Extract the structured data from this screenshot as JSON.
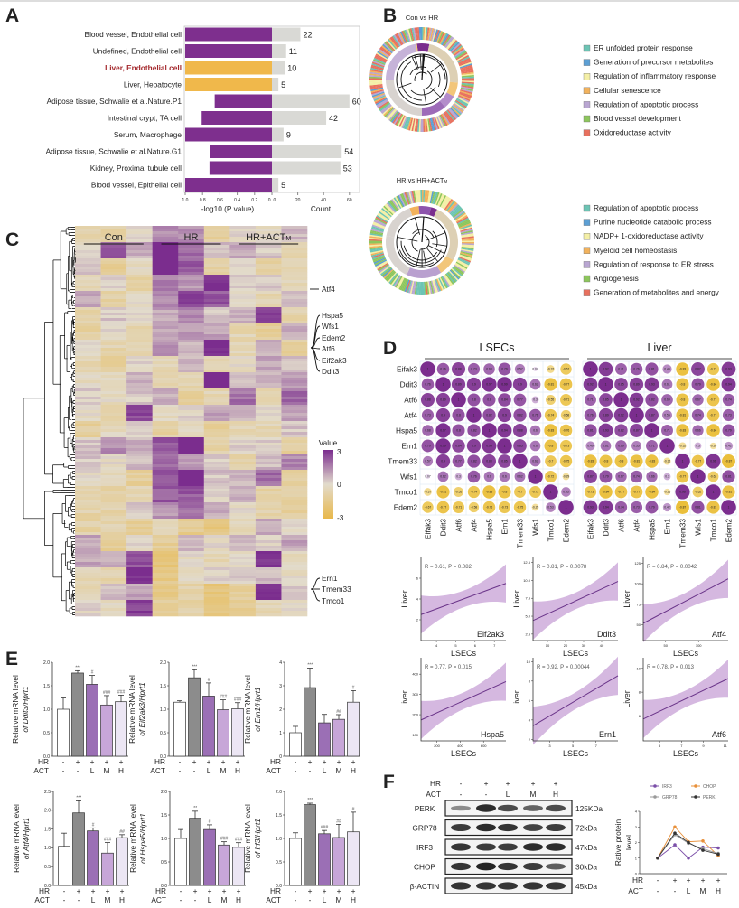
{
  "panel_labels": {
    "A": "A",
    "B": "B",
    "C": "C",
    "D": "D",
    "E": "E",
    "F": "F"
  },
  "panelB": {
    "rings": [
      {
        "title": "Con vs HR",
        "title_sub": "",
        "legend": [
          {
            "label": "ER unfolded protein response",
            "color": "#6cc4b4"
          },
          {
            "label": "Generation of precursor metabolites",
            "color": "#5c9fd4"
          },
          {
            "label": "Regulation of inflammatory response",
            "color": "#f4efa6"
          },
          {
            "label": "Cellular senescence",
            "color": "#f2b25c"
          },
          {
            "label": "Regulation of apoptotic process",
            "color": "#b9a6d2"
          },
          {
            "label": "Blood vessel development",
            "color": "#8dc65c"
          },
          {
            "label": "Oxidoreductase activity",
            "color": "#e8705e"
          }
        ]
      },
      {
        "title": "HR vs HR+ACT",
        "title_sub": "M",
        "legend": [
          {
            "label": "Regulation of apoptotic process",
            "color": "#6cc4b4"
          },
          {
            "label": "Purine nucleotide catabolic process",
            "color": "#5c9fd4"
          },
          {
            "label": "NADP+ 1-oxidoreductase activity",
            "color": "#f4efa6"
          },
          {
            "label": "Myeloid cell homeostasis",
            "color": "#f2b25c"
          },
          {
            "label": "Regulation of response to ER stress",
            "color": "#b9a6d2"
          },
          {
            "label": "Angiogenesis",
            "color": "#8dc65c"
          },
          {
            "label": "Generation of  metabolites and energy",
            "color": "#e8705e"
          }
        ]
      }
    ]
  },
  "panelF_blot": {
    "hr_label": "HR",
    "act_label": "ACT",
    "hr_row": [
      "-",
      "+",
      "+",
      "+",
      "+"
    ],
    "act_row": [
      "-",
      "-",
      "L",
      "M",
      "H"
    ],
    "proteins": [
      {
        "name": "PERK",
        "size": "125KDa",
        "intensity": [
          0.3,
          0.9,
          0.7,
          0.55,
          0.7
        ]
      },
      {
        "name": "GRP78",
        "size": "72kDa",
        "intensity": [
          0.8,
          0.9,
          0.85,
          0.75,
          0.8
        ]
      },
      {
        "name": "IRF3",
        "size": "47kDa",
        "intensity": [
          0.85,
          0.8,
          0.8,
          0.9,
          0.9
        ]
      },
      {
        "name": "CHOP",
        "size": "30kDa",
        "intensity": [
          0.85,
          0.95,
          0.85,
          0.8,
          0.6
        ]
      },
      {
        "name": "β-ACTIN",
        "size": "45kDa",
        "intensity": [
          0.85,
          0.85,
          0.85,
          0.85,
          0.85
        ]
      }
    ]
  },
  "chart_data": [
    {
      "panel": "A",
      "type": "bar",
      "categories": [
        "Blood vessel, Endothelial cell",
        "Undefined, Endothelial cell",
        "Liver, Endothelial cell",
        "Liver, Hepatocyte",
        "Adipose tissue, Schwalie et al.Nature.P1",
        "Intestinal crypt, TA cell",
        "Serum, Macrophage",
        "Adipose tissue, Schwalie et al.Nature.G1",
        "Kidney, Proximal tubule cell",
        "Blood vessel, Epithelial cell"
      ],
      "neg_log10_p": [
        1.0,
        1.0,
        1.0,
        1.0,
        0.66,
        0.81,
        1.0,
        0.71,
        0.72,
        1.0
      ],
      "count": [
        22,
        11,
        10,
        5,
        60,
        42,
        9,
        54,
        53,
        5
      ],
      "highlight": [
        2,
        3
      ],
      "xlabel_left": "-log10 (P value)",
      "xlabel_right": "Count",
      "left_ticks": [
        "1.0",
        "0.8",
        "0.6",
        "0.4",
        "0.2",
        "0"
      ],
      "right_ticks": [
        "0",
        "20",
        "40",
        "60"
      ],
      "xlim_left": [
        1.0,
        0
      ],
      "xlim_right": [
        0,
        67
      ],
      "colors": {
        "pvalue": "#7e2f8e",
        "highlight": "#f0b84b",
        "count": "#d9d9d5",
        "highlight_text": "#a3272b"
      }
    },
    {
      "panel": "C",
      "type": "heatmap",
      "groups": [
        {
          "label": "Con",
          "sub": ""
        },
        {
          "label": "HR",
          "sub": ""
        },
        {
          "label": "HR+ACT",
          "sub": "M"
        }
      ],
      "gene_labels": [
        "Atf4",
        "Hspa5",
        "Wfs1",
        "Edem2",
        "Atf6",
        "Eif2ak3",
        "Ddit3",
        "Ern1",
        "Tmem33",
        "Tmco1"
      ],
      "colorbar": {
        "title": "Value",
        "ticks": [
          "3",
          "0",
          "-3"
        ],
        "range": [
          -3,
          3
        ]
      },
      "colors": {
        "low": "#e8b84a",
        "mid": "#e2dbcc",
        "high": "#7b2d8e"
      }
    },
    {
      "panel": "D",
      "type": "heatmap",
      "title": "LSECs",
      "genes": [
        "Eifak3",
        "Ddit3",
        "Atf6",
        "Atf4",
        "Hspa5",
        "Ern1",
        "Tmem33",
        "Wfs1",
        "Tmco1",
        "Edem2"
      ],
      "matrix": [
        [
          1,
          0.76,
          0.88,
          0.73,
          0.68,
          0.79,
          0.57,
          0.07,
          -0.37,
          -0.67
        ],
        [
          0.76,
          1,
          0.89,
          0.9,
          0.97,
          0.99,
          0.9,
          0.62,
          -0.81,
          -0.77
        ],
        [
          0.88,
          0.89,
          1,
          0.8,
          0.8,
          0.84,
          0.77,
          0.3,
          -0.55,
          -0.71
        ],
        [
          0.73,
          0.9,
          0.8,
          1,
          0.82,
          0.9,
          0.82,
          0.76,
          -0.74,
          -0.58
        ],
        [
          0.68,
          0.97,
          0.8,
          0.82,
          1,
          0.94,
          0.88,
          0.6,
          -0.83,
          -0.76
        ],
        [
          0.79,
          0.99,
          0.84,
          0.9,
          0.94,
          1,
          0.85,
          0.6,
          -0.8,
          -0.73
        ],
        [
          0.57,
          0.9,
          0.77,
          0.82,
          0.88,
          0.85,
          1,
          0.62,
          -0.7,
          -0.75
        ],
        [
          0.07,
          0.62,
          0.3,
          0.76,
          0.6,
          0.6,
          0.62,
          1,
          -0.72,
          -0.29
        ],
        [
          -0.37,
          -0.81,
          -0.55,
          -0.74,
          -0.83,
          -0.8,
          -0.7,
          -0.72,
          1,
          0.53
        ],
        [
          -0.67,
          -0.77,
          -0.71,
          -0.58,
          -0.76,
          -0.73,
          -0.75,
          -0.29,
          0.53,
          1
        ]
      ]
    },
    {
      "panel": "D",
      "type": "heatmap",
      "title": "Liver",
      "genes": [
        "Eifak3",
        "Ddit3",
        "Atf6",
        "Atf4",
        "Hspa5",
        "Ern1",
        "Tmem33",
        "Wfs1",
        "Tmco1",
        "Edem2"
      ],
      "matrix": [
        [
          1,
          0.92,
          0.71,
          0.76,
          0.81,
          0.49,
          -0.83,
          0.87,
          -0.73,
          0.93
        ],
        [
          0.92,
          1,
          0.85,
          0.89,
          0.93,
          0.61,
          -0.8,
          0.79,
          -0.84,
          0.94
        ],
        [
          0.71,
          0.85,
          1,
          0.92,
          0.82,
          0.69,
          -0.8,
          0.67,
          -0.77,
          0.74
        ],
        [
          0.76,
          0.89,
          0.92,
          1,
          0.87,
          0.55,
          -0.81,
          0.74,
          -0.77,
          0.73
        ],
        [
          0.81,
          0.93,
          0.82,
          0.87,
          1,
          0.71,
          -0.83,
          0.66,
          -0.84,
          0.79
        ],
        [
          0.49,
          0.61,
          0.69,
          0.55,
          0.71,
          1,
          -0.32,
          0.3,
          -0.26,
          0.42
        ],
        [
          -0.83,
          -0.8,
          -0.8,
          -0.81,
          -0.83,
          -0.32,
          1,
          -0.77,
          0.96,
          -0.87
        ],
        [
          0.87,
          0.79,
          0.67,
          0.74,
          0.66,
          0.3,
          -0.77,
          1,
          -0.62,
          0.81
        ],
        [
          -0.73,
          -0.84,
          -0.77,
          -0.77,
          -0.84,
          -0.26,
          0.96,
          -0.62,
          1,
          -0.81
        ],
        [
          0.93,
          0.94,
          0.74,
          0.73,
          0.79,
          0.42,
          -0.87,
          0.81,
          -0.81,
          1
        ]
      ]
    },
    {
      "panel": "D",
      "type": "scatter",
      "gene": "Eif2ak3",
      "stat": "R = 0.61, P = 0.082",
      "xlabel": "LSECs",
      "ylabel": "Liver",
      "xlim": [
        3.2,
        7.6
      ],
      "ylim": [
        0,
        8
      ],
      "xticks": [
        "4",
        "5",
        "6",
        "7"
      ],
      "yticks": [
        "2",
        "4",
        "6"
      ],
      "fit": [
        [
          3.2,
          2.5
        ],
        [
          7.6,
          5.5
        ]
      ]
    },
    {
      "panel": "D",
      "type": "scatter",
      "gene": "Ddit3",
      "stat": "R = 0.81, P = 0.0078",
      "xlabel": "LSECs",
      "ylabel": "Liver",
      "xlim": [
        2,
        49
      ],
      "ylim": [
        1.6,
        13.2
      ],
      "xticks": [
        "10",
        "20",
        "30",
        "40"
      ],
      "yticks": [
        "2.5",
        "5.0",
        "7.5",
        "10.0",
        "12.5"
      ],
      "fit": [
        [
          2,
          4.4
        ],
        [
          49,
          9.85
        ]
      ]
    },
    {
      "panel": "D",
      "type": "scatter",
      "gene": "Atf4",
      "stat": "R = 0.84, P = 0.0042",
      "xlabel": "LSECs",
      "ylabel": "Liver",
      "xlim": [
        16,
        145
      ],
      "ylim": [
        31,
        132
      ],
      "xticks": [
        "50",
        "100"
      ],
      "yticks": [
        "50",
        "75",
        "100",
        "125"
      ],
      "fit": [
        [
          16,
          52
        ],
        [
          145,
          106
        ]
      ]
    },
    {
      "panel": "D",
      "type": "scatter",
      "gene": "Hspa5",
      "stat": "R = 0.77, P = 0.015",
      "xlabel": "LSECs",
      "ylabel": "Liver",
      "xlim": [
        64,
        792
      ],
      "ylim": [
        71,
        481
      ],
      "xticks": [
        "200",
        "400",
        "600"
      ],
      "yticks": [
        "100",
        "200",
        "300",
        "400"
      ],
      "fit": [
        [
          64,
          174
        ],
        [
          792,
          363
        ]
      ]
    },
    {
      "panel": "D",
      "type": "scatter",
      "gene": "Ern1",
      "stat": "R = 0.92, P = 0.00044",
      "xlabel": "LSECs",
      "ylabel": "Liver",
      "xlim": [
        1.55,
        8.9
      ],
      "ylim": [
        1.85,
        10.4
      ],
      "xticks": [
        "3",
        "5",
        "7"
      ],
      "yticks": [
        "2",
        "4",
        "6",
        "8",
        "10"
      ],
      "fit": [
        [
          1.55,
          3.4
        ],
        [
          8.9,
          8.55
        ]
      ]
    },
    {
      "panel": "D",
      "type": "scatter",
      "gene": "Atf6",
      "stat": "R = 0.78, P = 0.013",
      "xlabel": "LSECs",
      "ylabel": "Liver",
      "xlim": [
        3.5,
        11.27
      ],
      "ylim": [
        3.9,
        10.9
      ],
      "xticks": [
        "5",
        "7",
        "9",
        "11"
      ],
      "yticks": [
        "6",
        "8",
        "10"
      ],
      "fit": [
        [
          3.5,
          5.74
        ],
        [
          11.27,
          9.14
        ]
      ]
    },
    {
      "panel": "E",
      "type": "bar",
      "ylabel1": "Relative mRNA level",
      "ylabel2": "of Ddit3/Hprt1",
      "means": [
        1.0,
        1.77,
        1.53,
        1.09,
        1.16
      ],
      "errors": [
        0.24,
        0.05,
        0.19,
        0.2,
        0.14
      ],
      "sig": [
        "",
        "***",
        "#",
        "###",
        "###"
      ],
      "ylim": [
        0,
        2
      ],
      "yticks": [
        "0.0",
        "0.5",
        "1.0",
        "1.5",
        "2.0"
      ]
    },
    {
      "panel": "E",
      "type": "bar",
      "ylabel1": "Relative mRNA level",
      "ylabel2": "of Eif2ak3/Hprt1",
      "means": [
        1.15,
        1.67,
        1.28,
        0.99,
        1.01
      ],
      "errors": [
        0.03,
        0.17,
        0.28,
        0.21,
        0.13
      ],
      "sig": [
        "",
        "***",
        "#",
        "###",
        "###"
      ],
      "ylim": [
        0,
        2
      ],
      "yticks": [
        "0.0",
        "0.5",
        "1.0",
        "1.5",
        "2.0"
      ]
    },
    {
      "panel": "E",
      "type": "bar",
      "ylabel1": "Relative mRNA level",
      "ylabel2": "of Ern1/Hprt1",
      "means": [
        1.0,
        2.92,
        1.42,
        1.57,
        2.3
      ],
      "errors": [
        0.27,
        0.83,
        0.36,
        0.2,
        0.49
      ],
      "sig": [
        "",
        "***",
        "",
        "##",
        "#"
      ],
      "ylim": [
        0,
        4
      ],
      "yticks": [
        "0",
        "1",
        "2",
        "3",
        "4"
      ]
    },
    {
      "panel": "E",
      "type": "bar",
      "ylabel1": "Relative mRNA level",
      "ylabel2": "of Atf4/Hprt1",
      "means": [
        1.04,
        1.93,
        1.45,
        0.86,
        1.27
      ],
      "errors": [
        0.35,
        0.32,
        0.08,
        0.28,
        0.08
      ],
      "sig": [
        "",
        "***",
        "#",
        "###",
        "##"
      ],
      "ylim": [
        0,
        2.5
      ],
      "yticks": [
        "0.0",
        "0.5",
        "1.0",
        "1.5",
        "2.0",
        "2.5"
      ]
    },
    {
      "panel": "E",
      "type": "bar",
      "ylabel1": "Relative mRNA level",
      "ylabel2": "of Hspa5/Hprt1",
      "means": [
        1.0,
        1.43,
        1.19,
        0.86,
        0.81
      ],
      "errors": [
        0.19,
        0.15,
        0.1,
        0.07,
        0.1
      ],
      "sig": [
        "",
        "**",
        "#",
        "###",
        "###"
      ],
      "ylim": [
        0,
        2
      ],
      "yticks": [
        "0.0",
        "0.5",
        "1.0",
        "1.5",
        "2.0"
      ]
    },
    {
      "panel": "E",
      "type": "bar",
      "ylabel1": "Relative mRNA level",
      "ylabel2": "of Irf3/Hprt1",
      "means": [
        1.0,
        1.72,
        1.1,
        1.02,
        1.14
      ],
      "errors": [
        0.12,
        0.03,
        0.07,
        0.28,
        0.42
      ],
      "sig": [
        "",
        "***",
        "###",
        "##",
        "#"
      ],
      "ylim": [
        0,
        2
      ],
      "yticks": [
        "0.0",
        "0.5",
        "1.0",
        "1.5",
        "2.0"
      ]
    },
    {
      "panel": "F",
      "type": "line",
      "ylabel1": "Rative protein",
      "ylabel2": "level",
      "ylim": [
        0,
        4
      ],
      "yticks": [
        "0",
        "1",
        "2",
        "3",
        "4"
      ],
      "series": [
        {
          "name": "IRF3",
          "values": [
            1,
            1.85,
            1.0,
            1.7,
            1.65
          ],
          "color": "#7b4fa8"
        },
        {
          "name": "CHOP",
          "values": [
            1,
            3.0,
            2.05,
            2.1,
            1.15
          ],
          "color": "#e8903a"
        },
        {
          "name": "GRP78",
          "values": [
            1,
            2.5,
            1.95,
            1.6,
            1.3
          ],
          "color": "#9a9a9a"
        },
        {
          "name": "PERK",
          "values": [
            1,
            2.6,
            2.0,
            1.5,
            1.25
          ],
          "color": "#333333"
        }
      ]
    }
  ],
  "e_axis": {
    "hr_label": "HR",
    "act_label": "ACT",
    "hr_row": [
      "-",
      "+",
      "+",
      "+",
      "+"
    ],
    "act_row": [
      "-",
      "-",
      "L",
      "M",
      "H"
    ],
    "bar_colors": [
      "#ffffff",
      "#8c8c8c",
      "#9b6fb5",
      "#c7a6d8",
      "#ece6f4"
    ]
  }
}
